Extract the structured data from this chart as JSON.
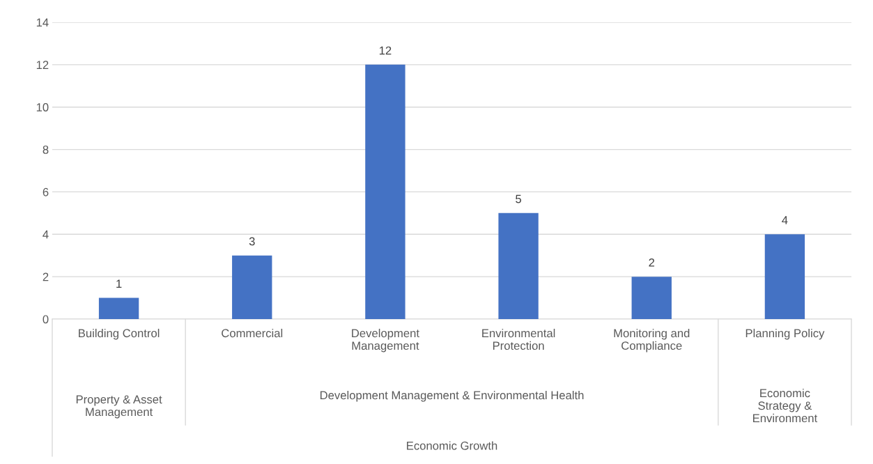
{
  "chart_data": {
    "type": "bar",
    "categories": [
      "Building Control",
      "Commercial",
      "Development Management",
      "Environmental Protection",
      "Monitoring and Compliance",
      "Planning Policy"
    ],
    "values": [
      1,
      3,
      12,
      5,
      2,
      4
    ],
    "color": "#4472c4",
    "ylim": [
      0,
      14
    ],
    "yticks": [
      0,
      2,
      4,
      6,
      8,
      10,
      12,
      14
    ],
    "grid": "y",
    "data_labels": true,
    "legend": false,
    "annotations": [
      "Property & Asset Management",
      "Development Management & Environmental Health",
      "Economic Strategy & Environment",
      "Economic Growth"
    ]
  }
}
